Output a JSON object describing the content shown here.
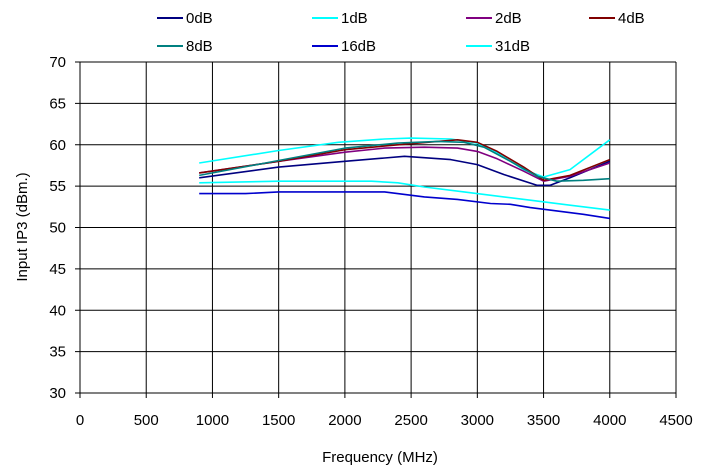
{
  "chart_data": {
    "type": "line",
    "title": "",
    "xlabel": "Frequency (MHz)",
    "ylabel": "Input IP3 (dBm.)",
    "xlim": [
      0,
      4500
    ],
    "ylim": [
      30,
      70
    ],
    "xticks": [
      0,
      500,
      1000,
      1500,
      2000,
      2500,
      3000,
      3500,
      4000,
      4500
    ],
    "yticks": [
      30,
      35,
      40,
      45,
      50,
      55,
      60,
      65,
      70
    ],
    "xtick_labels": [
      "0",
      "500",
      "1000",
      "1500",
      "2000",
      "2500",
      "3000",
      "3500",
      "4000",
      "4500"
    ],
    "ytick_labels": [
      "30",
      "35",
      "40",
      "45",
      "50",
      "55",
      "60",
      "65",
      "70"
    ],
    "grid": true,
    "legend_position": "top",
    "series": [
      {
        "name": "0dB",
        "color": "#000080",
        "x": [
          900,
          1500,
          2000,
          2300,
          2450,
          2800,
          3000,
          3200,
          3450,
          3550,
          3700,
          4000
        ],
        "y": [
          56.0,
          57.3,
          58.0,
          58.4,
          58.6,
          58.2,
          57.6,
          56.4,
          55.1,
          55.1,
          56.0,
          58.0
        ]
      },
      {
        "name": "1dB",
        "color": "#00FFFF",
        "x": [
          900,
          1500,
          1950,
          2300,
          2500,
          2800,
          3000,
          3150,
          3350,
          3500,
          3700,
          4000
        ],
        "y": [
          57.8,
          59.3,
          60.3,
          60.7,
          60.8,
          60.7,
          60.2,
          59.0,
          57.0,
          56.1,
          57.0,
          60.6
        ]
      },
      {
        "name": "2dB",
        "color": "#800080",
        "x": [
          900,
          1500,
          2000,
          2300,
          2600,
          2850,
          3000,
          3150,
          3350,
          3500,
          3700,
          4000
        ],
        "y": [
          56.6,
          58.0,
          59.1,
          59.6,
          59.7,
          59.6,
          59.2,
          58.3,
          56.8,
          55.6,
          56.2,
          57.8
        ]
      },
      {
        "name": "4dB",
        "color": "#800000",
        "x": [
          900,
          1500,
          2000,
          2400,
          2700,
          2850,
          3000,
          3150,
          3350,
          3500,
          3700,
          4000
        ],
        "y": [
          56.6,
          58.0,
          59.4,
          60.0,
          60.4,
          60.6,
          60.3,
          59.2,
          57.3,
          55.7,
          56.3,
          58.2
        ]
      },
      {
        "name": "8dB",
        "color": "#008080",
        "x": [
          900,
          1500,
          2000,
          2400,
          2700,
          2900,
          3050,
          3250,
          3450,
          3600,
          3800,
          4000
        ],
        "y": [
          56.3,
          58.1,
          59.6,
          60.2,
          60.4,
          60.3,
          59.7,
          58.0,
          56.2,
          55.6,
          55.7,
          55.9
        ]
      },
      {
        "name": "16dB",
        "color": "#0000CD",
        "x": [
          900,
          1250,
          1500,
          2000,
          2300,
          2600,
          2850,
          3100,
          3250,
          3400,
          3600,
          3800,
          4000
        ],
        "y": [
          54.1,
          54.1,
          54.3,
          54.3,
          54.3,
          53.7,
          53.4,
          52.9,
          52.8,
          52.4,
          52.0,
          51.6,
          51.1
        ]
      },
      {
        "name": "31dB",
        "color": "#00FFFF",
        "x": [
          900,
          1500,
          2000,
          2200,
          2400,
          2600,
          2900,
          3050,
          3200,
          3400,
          3700,
          4000
        ],
        "y": [
          55.4,
          55.6,
          55.6,
          55.6,
          55.4,
          54.9,
          54.3,
          54.0,
          53.7,
          53.3,
          52.7,
          52.1
        ]
      }
    ]
  }
}
